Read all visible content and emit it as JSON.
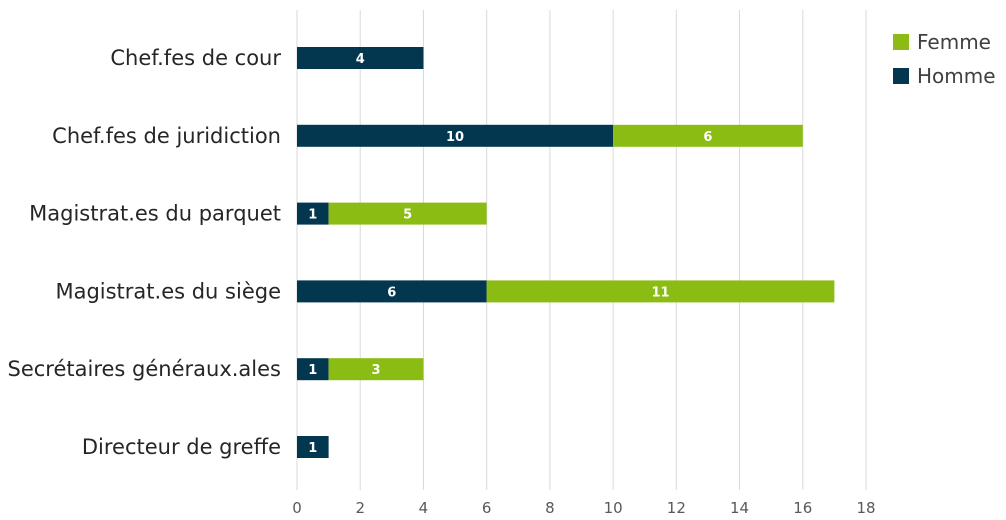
{
  "chart_data": {
    "type": "bar",
    "orientation": "horizontal",
    "stacked": true,
    "categories": [
      "Chef.fes de cour",
      "Chef.fes de juridiction",
      "Magistrat.es du parquet",
      "Magistrat.es du siège",
      "Secrétaires généraux.ales",
      "Directeur de greffe"
    ],
    "series": [
      {
        "name": "Homme",
        "color": "#03364f",
        "values": [
          4,
          10,
          1,
          6,
          1,
          1
        ]
      },
      {
        "name": "Femme",
        "color": "#8bbc14",
        "values": [
          0,
          6,
          5,
          11,
          3,
          0
        ]
      }
    ],
    "legend_order": [
      "Femme",
      "Homme"
    ],
    "xticks": [
      "0",
      "2",
      "4",
      "6",
      "8",
      "10",
      "12",
      "14",
      "16",
      "18"
    ],
    "xlim": [
      0,
      18
    ],
    "grid": "vertical",
    "legend": "top-right",
    "title": "",
    "xlabel": "",
    "ylabel": ""
  }
}
